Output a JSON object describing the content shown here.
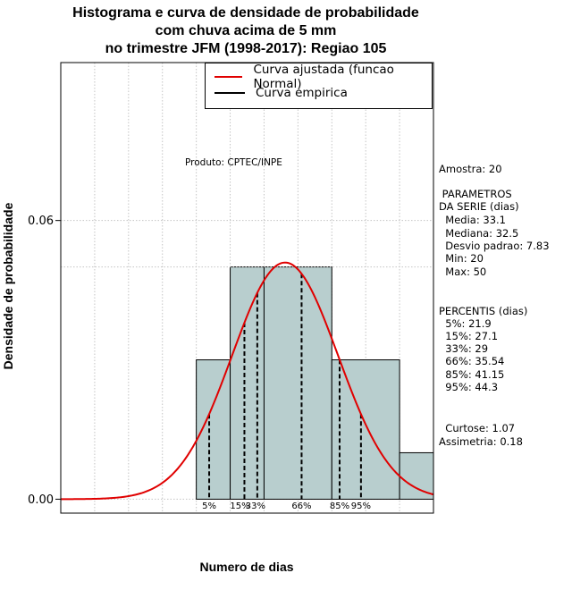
{
  "chart_data": {
    "type": "bar",
    "title_lines": [
      "Histograma e curva de densidade de probabilidade",
      "com chuva acima de 5 mm",
      "no trimestre JFM (1998-2017): Regiao 105"
    ],
    "xlabel": "Numero de dias",
    "ylabel": "Densidade de probabilidade",
    "product_label": "Produto: CPTEC/INPE",
    "xlim": [
      0,
      55
    ],
    "ylim": [
      -0.003,
      0.094
    ],
    "y_ticks": [
      0.0,
      0.06
    ],
    "y_tick_labels": [
      "0.00",
      "0.06"
    ],
    "histogram": {
      "bin_edges": [
        20,
        25,
        30,
        40,
        50,
        55
      ],
      "densities": [
        0.03,
        0.05,
        0.05,
        0.03,
        0.01
      ]
    },
    "normal_curve": {
      "mean": 33.1,
      "sd": 7.83,
      "x_range": [
        0,
        55
      ],
      "color": "#e00000"
    },
    "percentile_lines": [
      {
        "label": "5%",
        "value": 21.9
      },
      {
        "label": "15%",
        "value": 27.1
      },
      {
        "label": "33%",
        "value": 29
      },
      {
        "label": "66%",
        "value": 35.54
      },
      {
        "label": "85%",
        "value": 41.15
      },
      {
        "label": "95%",
        "value": 44.3
      }
    ],
    "reference_hline": 0.05,
    "legend": [
      {
        "label": "Curva ajustada (funcao Normal)",
        "color": "#e00000"
      },
      {
        "label": "Curva empirica",
        "color": "#000000"
      }
    ],
    "bar_color": "#b8cece"
  },
  "stats": {
    "amostra": "Amostra: 20",
    "parametros_header": " PARAMETROS",
    "serie_header": "DA SERIE (dias)",
    "media": "  Media: 33.1",
    "mediana": "  Mediana: 32.5",
    "desvio": "  Desvio padrao: 7.83",
    "min": "  Min: 20",
    "max": "  Max: 50",
    "percentis_header": "PERCENTIS (dias)",
    "p5": "  5%: 21.9",
    "p15": "  15%: 27.1",
    "p33": "  33%: 29",
    "p66": "  66%: 35.54",
    "p85": "  85%: 41.15",
    "p95": "  95%: 44.3",
    "curtose": "  Curtose: 1.07",
    "assimetria": "Assimetria: 0.18"
  }
}
